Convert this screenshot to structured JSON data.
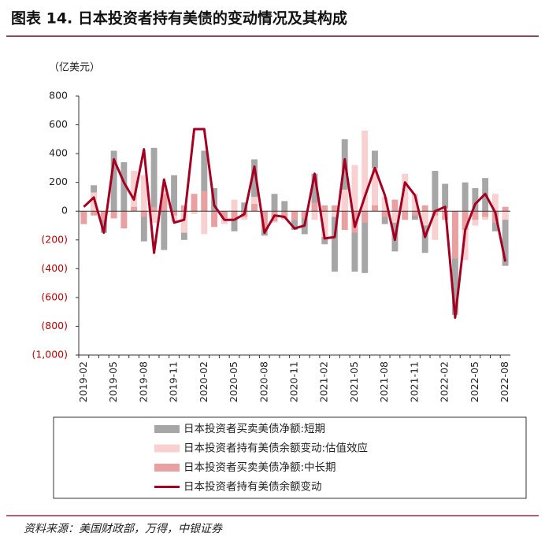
{
  "chart_data": {
    "type": "bar-line",
    "title": "图表 14. 日本投资者持有美债的变动情况及其构成",
    "y_label": "（亿美元）",
    "source": "资料来源：美国财政部，万得，中银证券",
    "categories": [
      "2019-02",
      null,
      null,
      "2019-05",
      null,
      null,
      "2019-08",
      null,
      null,
      "2019-11",
      null,
      null,
      "2020-02",
      null,
      null,
      "2020-05",
      null,
      null,
      "2020-08",
      null,
      null,
      "2020-11",
      null,
      null,
      "2021-02",
      null,
      null,
      "2021-05",
      null,
      null,
      "2021-08",
      null,
      null,
      "2021-11",
      null,
      null,
      "2022-02",
      null,
      null,
      "2022-05",
      null,
      null,
      "2022-08"
    ],
    "ylim": [
      -1000,
      800
    ],
    "yticks": [
      800,
      600,
      400,
      200,
      0,
      {
        "value": -200,
        "label": "(200)"
      },
      {
        "value": -400,
        "label": "(400)"
      },
      {
        "value": -600,
        "label": "(600)"
      },
      {
        "value": -800,
        "label": "(800)"
      },
      {
        "value": -1000,
        "label": "(1,000)"
      }
    ],
    "negative_tick_color": "#c00000",
    "series": [
      {
        "name": "日本投资者买卖美债净额:短期",
        "kind": "bar",
        "color": "#a6a6a6",
        "values": [
          -30,
          180,
          -150,
          420,
          340,
          20,
          -210,
          440,
          -270,
          250,
          -200,
          30,
          420,
          160,
          -50,
          -140,
          60,
          360,
          -170,
          120,
          70,
          -130,
          -160,
          260,
          -230,
          -420,
          500,
          -420,
          -430,
          420,
          -90,
          -280,
          130,
          -60,
          -290,
          280,
          190,
          -720,
          200,
          160,
          230,
          -140,
          -380
        ]
      },
      {
        "name": "日本投资者持有美债余额变动:估值效应",
        "kind": "bar",
        "color": "#f8d0d0",
        "values": [
          -50,
          130,
          -60,
          -50,
          -120,
          280,
          250,
          -80,
          180,
          -70,
          -150,
          -20,
          -160,
          -30,
          -90,
          80,
          -60,
          100,
          -50,
          -80,
          -60,
          -60,
          -40,
          -60,
          -180,
          -40,
          150,
          320,
          560,
          300,
          100,
          -80,
          260,
          120,
          -100,
          -200,
          20,
          -320,
          -340,
          -100,
          -60,
          120,
          -60
        ]
      },
      {
        "name": "日本投资者买卖美债净额:中长期",
        "kind": "bar",
        "color": "#e8a0a0",
        "values": [
          -90,
          -30,
          -60,
          -50,
          -120,
          30,
          -40,
          30,
          120,
          -30,
          40,
          120,
          140,
          -110,
          -50,
          -60,
          -40,
          50,
          -130,
          -70,
          -50,
          -60,
          -50,
          60,
          40,
          40,
          -130,
          -150,
          -80,
          40,
          -40,
          80,
          -60,
          -30,
          40,
          -30,
          -60,
          -330,
          -130,
          -60,
          -40,
          -80,
          30
        ]
      },
      {
        "name": "日本投资者持有美债余额变动",
        "kind": "line",
        "color": "#a50021",
        "values": [
          30,
          95,
          -150,
          360,
          200,
          80,
          430,
          -290,
          220,
          -80,
          -60,
          570,
          570,
          40,
          -60,
          -60,
          -20,
          310,
          -150,
          -30,
          -40,
          -120,
          -100,
          260,
          -190,
          -180,
          360,
          -110,
          100,
          300,
          110,
          -200,
          200,
          110,
          -180,
          0,
          30,
          -740,
          -130,
          50,
          120,
          -10,
          -350
        ]
      }
    ]
  }
}
